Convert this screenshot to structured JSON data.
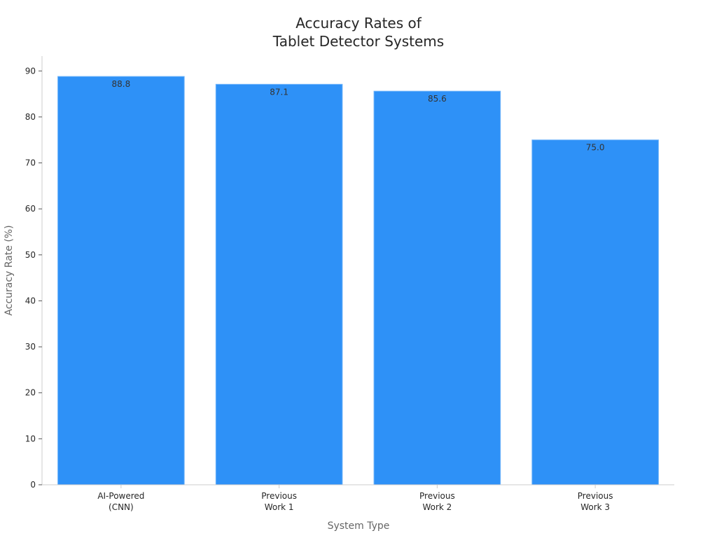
{
  "chart_data": {
    "type": "bar",
    "title_lines": [
      "Accuracy Rates of",
      "Tablet Detector Systems"
    ],
    "xlabel": "System Type",
    "ylabel": "Accuracy Rate (%)",
    "categories": [
      [
        "AI-Powered",
        "(CNN)"
      ],
      [
        "Previous",
        "Work 1"
      ],
      [
        "Previous",
        "Work 2"
      ],
      [
        "Previous",
        "Work 3"
      ]
    ],
    "values": [
      88.8,
      87.1,
      85.6,
      75.0
    ],
    "value_labels": [
      "88.8",
      "87.1",
      "85.6",
      "75.0"
    ],
    "ylim": [
      0,
      93.24
    ],
    "yticks": [
      0,
      10,
      20,
      30,
      40,
      50,
      60,
      70,
      80,
      90
    ],
    "grid": false,
    "legend": "none",
    "colors": {
      "bar": "#2e91f7",
      "bar_edge": "#6fb4fa",
      "axis": "#cccccc",
      "tick_text": "#262626",
      "label_text": "#666666",
      "title_text": "#262626",
      "value_text": "#333333"
    }
  }
}
